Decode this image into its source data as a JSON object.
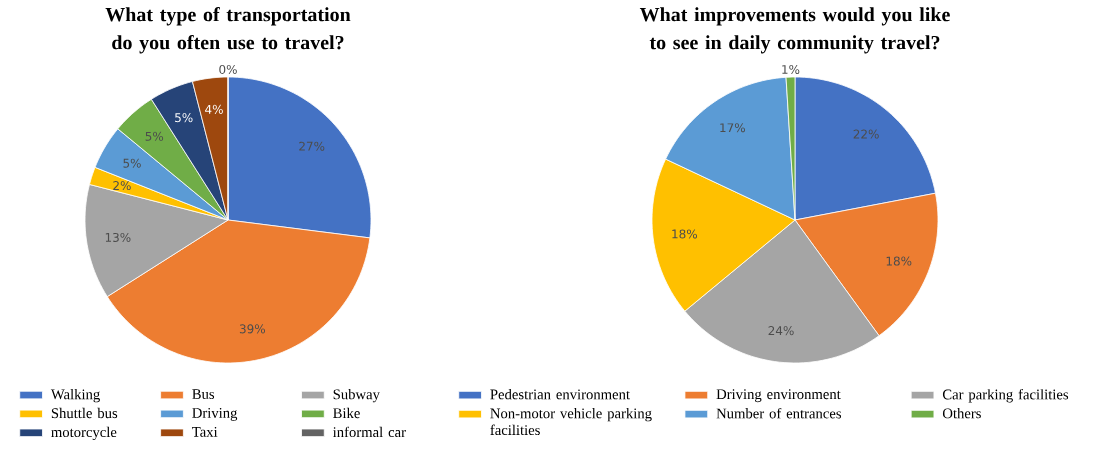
{
  "chart_data": [
    {
      "type": "pie",
      "title": "What type of transportation do you often use to travel?",
      "categories": [
        "Walking",
        "Bus",
        "Subway",
        "Shuttle bus",
        "Driving",
        "Bike",
        "motorcycle",
        "Taxi",
        "informal car"
      ],
      "values": [
        27,
        39,
        13,
        2,
        5,
        5,
        5,
        4,
        0
      ],
      "colors": [
        "#4472c4",
        "#ed7d31",
        "#a5a5a5",
        "#ffc000",
        "#5b9bd5",
        "#70ad47",
        "#264478",
        "#9e480e",
        "#636363"
      ],
      "value_labels": [
        "27%",
        "39%",
        "13%",
        "2%",
        "5%",
        "5%",
        "5%",
        "4%",
        "0%"
      ],
      "legend": "bottom"
    },
    {
      "type": "pie",
      "title": "What improvements would you like to see in daily community travel?",
      "categories": [
        "Pedestrian environment",
        "Driving environment",
        "Car parking facilities",
        "Non-motor vehicle parking facilities",
        "Number of entrances",
        "Others"
      ],
      "values": [
        22,
        18,
        24,
        18,
        17,
        1
      ],
      "colors": [
        "#4472c4",
        "#ed7d31",
        "#a5a5a5",
        "#ffc000",
        "#5b9bd5",
        "#70ad47"
      ],
      "value_labels": [
        "22%",
        "18%",
        "24%",
        "18%",
        "17%",
        "1%"
      ],
      "legend": "bottom"
    }
  ]
}
